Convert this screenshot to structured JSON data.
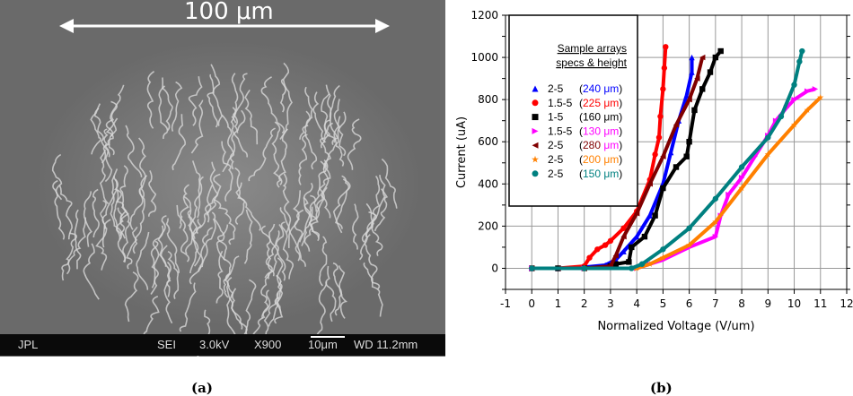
{
  "panel_a": {
    "scale_label": "100 μm",
    "info_bar": {
      "lab": "JPL",
      "mode": "SEI",
      "voltage": "3.0kV",
      "magnification": "X900",
      "scale": "10μm",
      "working_distance": "WD 11.2mm"
    },
    "caption": "(a)"
  },
  "panel_b": {
    "caption": "(b)"
  },
  "chart_data": {
    "type": "scatter",
    "title": "",
    "xlabel": "Normalized Voltage (V/um)",
    "ylabel": "Current (uA)",
    "xlim": [
      -1,
      12
    ],
    "ylim": [
      -100,
      1200
    ],
    "xticks": [
      -1,
      0,
      1,
      2,
      3,
      4,
      5,
      6,
      7,
      8,
      9,
      10,
      11,
      12
    ],
    "yticks": [
      0,
      200,
      400,
      600,
      800,
      1000,
      1200
    ],
    "grid": true,
    "legend": {
      "placement": "top-left",
      "title_line1": "Sample arrays",
      "title_line2": "specs & height"
    },
    "series": [
      {
        "name": "2-5",
        "height": "240",
        "unit": "μm",
        "marker": "triangle-up",
        "color": "#0000ff",
        "height_color": "#0000ff",
        "unit_color": "#0000ff",
        "x": [
          0,
          1,
          2,
          2.8,
          3.2,
          3.5,
          4,
          4.5,
          5,
          5.3,
          5.6,
          5.9,
          6.1,
          6.1
        ],
        "y": [
          0,
          0,
          5,
          15,
          40,
          80,
          150,
          250,
          400,
          550,
          700,
          820,
          930,
          1000
        ]
      },
      {
        "name": "1.5-5",
        "height": "225",
        "unit": "μm",
        "marker": "circle",
        "color": "#ff0000",
        "height_color": "#ff0000",
        "unit_color": "#ff0000",
        "x": [
          0,
          1,
          2,
          2.2,
          2.5,
          2.8,
          3,
          3.5,
          4,
          4.5,
          4.7,
          4.85,
          4.9,
          5.0,
          5.05,
          5.1
        ],
        "y": [
          0,
          0,
          10,
          50,
          90,
          110,
          130,
          190,
          270,
          420,
          540,
          620,
          720,
          850,
          950,
          1050
        ]
      },
      {
        "name": "1-5",
        "height": "160",
        "unit": "μm",
        "marker": "square",
        "color": "#000000",
        "height_color": "#000000",
        "unit_color": "#000000",
        "x": [
          0,
          1,
          2,
          3,
          3.2,
          3.7,
          3.8,
          4.3,
          4.7,
          5,
          5.5,
          5.9,
          6,
          6.2,
          6.5,
          6.8,
          7,
          7.2
        ],
        "y": [
          0,
          0,
          0,
          10,
          20,
          30,
          100,
          150,
          250,
          380,
          480,
          530,
          600,
          750,
          850,
          930,
          1000,
          1030
        ]
      },
      {
        "name": "1.5-5",
        "height": "130",
        "unit": "μm",
        "marker": "triangle-right",
        "color": "#ff00ff",
        "height_color": "#ff00ff",
        "unit_color": "#ff00ff",
        "x": [
          0,
          2,
          4,
          4.5,
          5,
          6,
          7,
          7.2,
          7.5,
          8,
          8.5,
          9,
          9.3,
          9.7,
          10,
          10.5,
          10.8
        ],
        "y": [
          0,
          0,
          0,
          20,
          40,
          100,
          150,
          250,
          350,
          430,
          530,
          630,
          700,
          760,
          800,
          840,
          850
        ]
      },
      {
        "name": "2-5",
        "height": "280",
        "unit": "μm",
        "marker": "triangle-left",
        "color": "#800000",
        "height_color": "#800000",
        "unit_color": "#ff00ff",
        "x": [
          0,
          1,
          2,
          3,
          3.2,
          3.5,
          4,
          4.5,
          5,
          5.5,
          6,
          6.3,
          6.5
        ],
        "y": [
          0,
          0,
          0,
          10,
          60,
          150,
          260,
          400,
          530,
          680,
          800,
          900,
          1000
        ]
      },
      {
        "name": "2-5",
        "height": "200",
        "unit": "μm",
        "marker": "star",
        "color": "#ff8000",
        "height_color": "#ff8000",
        "unit_color": "#ff8000",
        "x": [
          0,
          2,
          4,
          4.5,
          5,
          6,
          7,
          8,
          9,
          10,
          10.5,
          11
        ],
        "y": [
          0,
          0,
          0,
          20,
          50,
          110,
          220,
          380,
          540,
          680,
          750,
          810
        ]
      },
      {
        "name": "2-5",
        "height": "150",
        "unit": "μm",
        "marker": "octagon",
        "color": "#008080",
        "height_color": "#008080",
        "unit_color": "#008080",
        "x": [
          0,
          2,
          3.8,
          4.2,
          5,
          6,
          7,
          8,
          9,
          9.5,
          10,
          10.2,
          10.3
        ],
        "y": [
          0,
          0,
          0,
          20,
          90,
          190,
          330,
          480,
          620,
          720,
          870,
          980,
          1030
        ]
      }
    ]
  }
}
